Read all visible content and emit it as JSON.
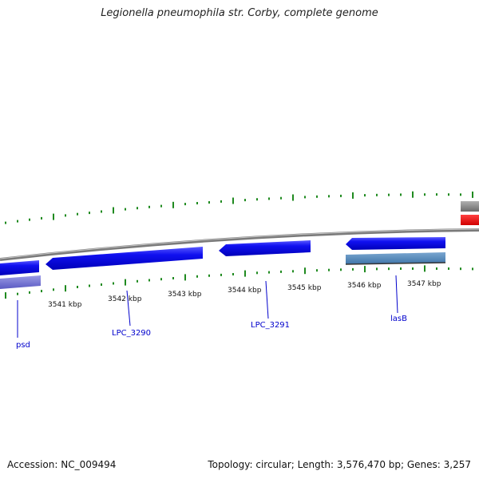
{
  "title": "Legionella pneumophila str. Corby, complete genome",
  "footer": {
    "accession": "Accession: NC_009494",
    "summary": "Topology: circular; Length: 3,576,470 bp; Genes: 3,257"
  },
  "kbp_labels": [
    "3541 kbp",
    "3542 kbp",
    "3543 kbp",
    "3544 kbp",
    "3545 kbp",
    "3546 kbp",
    "3547 kbp"
  ],
  "gene_labels": [
    "psd",
    "LPC_3290",
    "LPC_3291",
    "lasB"
  ],
  "colors": {
    "gene_forward": "#0000ee",
    "gene_highlight": "#6b6bd6",
    "gene_alt": "#4f86b8",
    "backbone": "#8a8a8a",
    "gc_skew_tick": "#1f8a1f",
    "feature_red": "#ff0000",
    "label": "#0000cc"
  }
}
